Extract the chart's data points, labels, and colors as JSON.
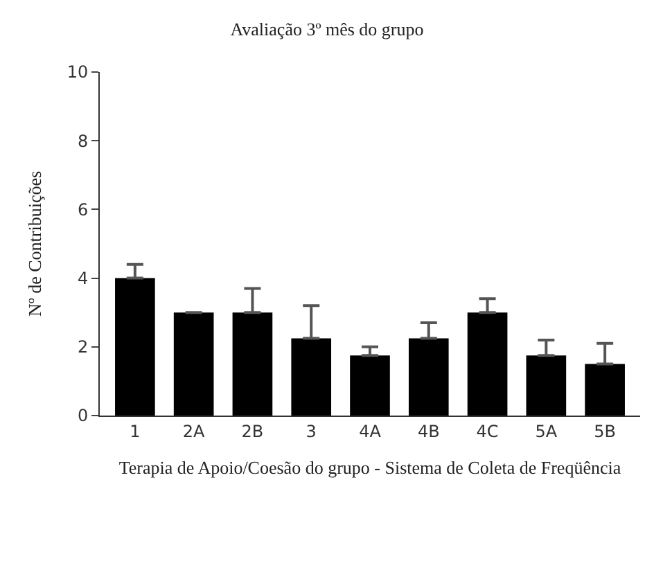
{
  "chart_data": {
    "type": "bar",
    "title": "Avaliação 3º mês do grupo",
    "xlabel": "Terapia de Apoio/Coesão do grupo - Sistema de Coleta de Freqüência",
    "ylabel": "Nº de Contribuições",
    "categories": [
      "1",
      "2A",
      "2B",
      "3",
      "4A",
      "4B",
      "4C",
      "5A",
      "5B"
    ],
    "values": [
      4.0,
      3.0,
      3.0,
      2.25,
      1.75,
      2.25,
      3.0,
      1.75,
      1.5
    ],
    "errors": [
      [
        4.0,
        4.4
      ],
      null,
      [
        3.0,
        3.7
      ],
      [
        2.25,
        3.2
      ],
      [
        1.75,
        2.0
      ],
      [
        2.25,
        2.7
      ],
      [
        3.0,
        3.4
      ],
      [
        1.75,
        2.2
      ],
      [
        1.5,
        2.1
      ]
    ],
    "color": "#000000",
    "ylim": [
      0,
      10
    ],
    "yticks": [
      0,
      2,
      4,
      6,
      8,
      10
    ]
  }
}
